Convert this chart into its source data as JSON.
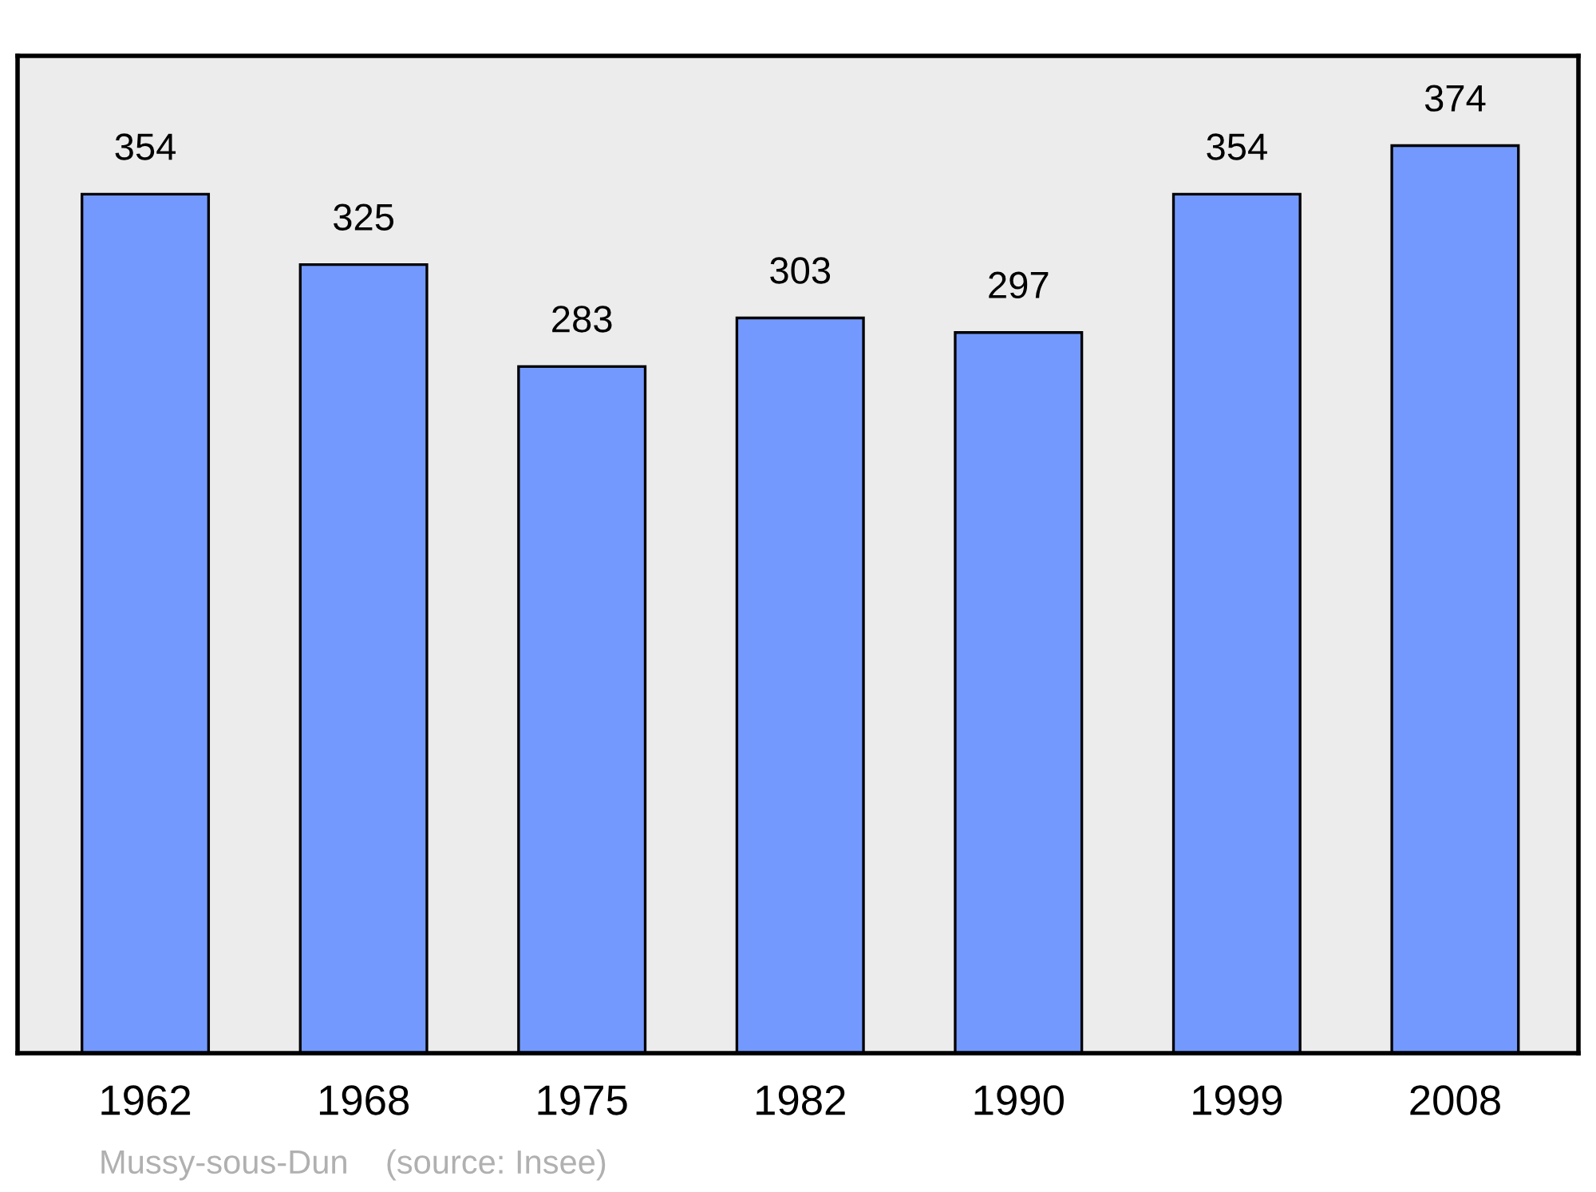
{
  "chart_data": {
    "type": "bar",
    "categories": [
      "1962",
      "1968",
      "1975",
      "1982",
      "1990",
      "1999",
      "2008"
    ],
    "values": [
      354,
      325,
      283,
      303,
      297,
      354,
      374
    ],
    "color": "#7399ff",
    "ylim": [
      0,
      411
    ],
    "tick_labels": "x",
    "data_labels": true,
    "annotations": [
      "Mussy-sous-Dun    (source: Insee)"
    ]
  }
}
